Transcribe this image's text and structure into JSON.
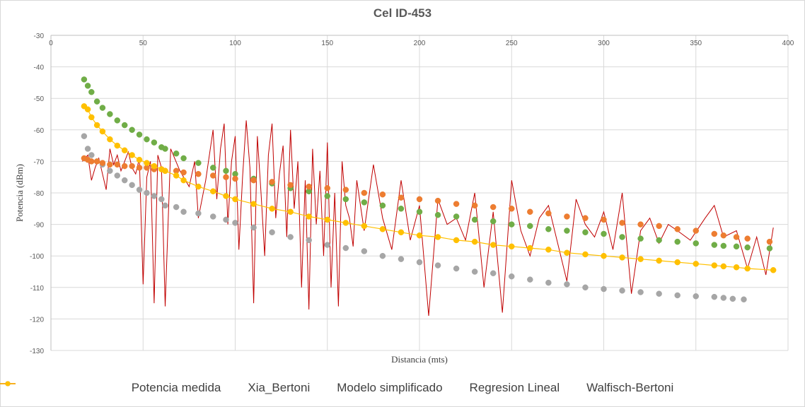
{
  "chart_data": {
    "type": "scatter",
    "title": "Cel ID-453",
    "xlabel": "Distancia (mts)",
    "ylabel": "Potencia (dBm)",
    "xlim": [
      0,
      400
    ],
    "ylim": [
      -130,
      -30
    ],
    "x_ticks": [
      0,
      50,
      100,
      150,
      200,
      250,
      300,
      350,
      400
    ],
    "y_ticks": [
      -30,
      -40,
      -50,
      -60,
      -70,
      -80,
      -90,
      -100,
      -110,
      -120,
      -130
    ],
    "x_axis_position": "top",
    "grid": true,
    "legend_position": "bottom",
    "series": [
      {
        "name": "Potencia medida",
        "style": "line",
        "color": "#c00000",
        "x": [
          17,
          20,
          22,
          24,
          26,
          28,
          30,
          32,
          34,
          36,
          38,
          40,
          42,
          44,
          46,
          48,
          50,
          52,
          54,
          56,
          58,
          60,
          62,
          65,
          70,
          75,
          78,
          80,
          84,
          88,
          90,
          92,
          94,
          96,
          98,
          100,
          102,
          104,
          106,
          108,
          110,
          112,
          114,
          116,
          118,
          120,
          122,
          124,
          126,
          128,
          130,
          132,
          134,
          136,
          138,
          140,
          142,
          144,
          146,
          148,
          150,
          152,
          154,
          156,
          158,
          160,
          162,
          164,
          166,
          170,
          175,
          180,
          185,
          190,
          195,
          200,
          205,
          210,
          215,
          220,
          225,
          230,
          235,
          240,
          245,
          250,
          255,
          260,
          265,
          270,
          275,
          280,
          285,
          290,
          295,
          300,
          305,
          310,
          315,
          320,
          325,
          330,
          335,
          340,
          347,
          355,
          360,
          365,
          372,
          378,
          383,
          388,
          392
        ],
        "y": [
          -70,
          -68,
          -76,
          -72,
          -69,
          -74,
          -79,
          -66,
          -71,
          -68,
          -73,
          -70,
          -67,
          -72,
          -74,
          -69,
          -109,
          -75,
          -70,
          -115,
          -68,
          -72,
          -116,
          -66,
          -73,
          -78,
          -70,
          -88,
          -76,
          -60,
          -82,
          -66,
          -58,
          -90,
          -70,
          -62,
          -98,
          -75,
          -57,
          -72,
          -115,
          -62,
          -80,
          -100,
          -68,
          -58,
          -88,
          -74,
          -65,
          -94,
          -60,
          -85,
          -70,
          -110,
          -76,
          -117,
          -66,
          -90,
          -73,
          -100,
          -64,
          -110,
          -80,
          -116,
          -70,
          -84,
          -88,
          -97,
          -76,
          -92,
          -71,
          -88,
          -98,
          -76,
          -95,
          -84,
          -119,
          -82,
          -90,
          -88,
          -95,
          -80,
          -110,
          -86,
          -118,
          -76,
          -92,
          -100,
          -88,
          -84,
          -96,
          -108,
          -82,
          -90,
          -94,
          -86,
          -98,
          -80,
          -112,
          -92,
          -88,
          -96,
          -90,
          -92,
          -95,
          -88,
          -84,
          -94,
          -92,
          -104,
          -94,
          -106,
          -91
        ],
        "raw_note": ""
      },
      {
        "name": "Xia_Bertoni",
        "style": "markers",
        "color": "#a6a6a6",
        "x": [
          18,
          20,
          22,
          25,
          28,
          32,
          36,
          40,
          44,
          48,
          52,
          56,
          60,
          62,
          68,
          72,
          80,
          88,
          95,
          100,
          110,
          120,
          130,
          140,
          150,
          160,
          170,
          180,
          190,
          200,
          210,
          220,
          230,
          240,
          250,
          260,
          270,
          280,
          290,
          300,
          310,
          320,
          330,
          340,
          350,
          360,
          365,
          370,
          376
        ],
        "y": [
          -62,
          -66,
          -68,
          -70,
          -71,
          -73,
          -74.5,
          -76,
          -77.5,
          -79,
          -80,
          -81,
          -82,
          -84,
          -84.5,
          -86,
          -86.5,
          -87.5,
          -88.5,
          -89.5,
          -91,
          -92.5,
          -94,
          -95,
          -96.5,
          -97.5,
          -98.5,
          -100,
          -101,
          -102,
          -103,
          -104,
          -105,
          -105.5,
          -106.5,
          -107.5,
          -108.5,
          -109,
          -110,
          -110.5,
          -111,
          -111.5,
          -112,
          -112.5,
          -112.8,
          -113,
          -113.3,
          -113.6,
          -113.8
        ]
      },
      {
        "name": "Modelo simplificado",
        "style": "markers",
        "color": "#70ad47",
        "x": [
          18,
          20,
          22,
          25,
          28,
          32,
          36,
          40,
          44,
          48,
          52,
          56,
          60,
          62,
          68,
          72,
          80,
          88,
          95,
          100,
          110,
          120,
          130,
          140,
          150,
          160,
          170,
          180,
          190,
          200,
          210,
          220,
          230,
          240,
          250,
          260,
          270,
          280,
          290,
          300,
          310,
          320,
          330,
          340,
          350,
          360,
          365,
          372,
          378,
          390
        ],
        "y": [
          -44,
          -46,
          -48,
          -51,
          -53,
          -55,
          -57,
          -58.5,
          -60,
          -61.5,
          -63,
          -64,
          -65.5,
          -66,
          -67.5,
          -69,
          -70.5,
          -72,
          -73,
          -74,
          -75.5,
          -77,
          -78.5,
          -79.5,
          -81,
          -82,
          -83,
          -84,
          -85,
          -86,
          -87,
          -87.5,
          -88.5,
          -89,
          -90,
          -90.5,
          -91.5,
          -92,
          -92.5,
          -93,
          -94,
          -94.5,
          -95,
          -95.5,
          -96,
          -96.5,
          -96.8,
          -97,
          -97.3,
          -97.6
        ]
      },
      {
        "name": "Regresion Lineal",
        "style": "markers",
        "color": "#ed7d31",
        "x": [
          18,
          20,
          22,
          25,
          28,
          32,
          36,
          40,
          44,
          48,
          52,
          56,
          60,
          62,
          68,
          72,
          80,
          88,
          95,
          100,
          110,
          120,
          130,
          140,
          150,
          160,
          170,
          180,
          190,
          200,
          210,
          220,
          230,
          240,
          250,
          260,
          270,
          280,
          290,
          300,
          310,
          320,
          330,
          340,
          350,
          360,
          365,
          372,
          378,
          390
        ],
        "y": [
          -69,
          -69.5,
          -70,
          -70,
          -70.5,
          -71,
          -71,
          -71.5,
          -71.5,
          -72,
          -72,
          -72.5,
          -72.5,
          -73,
          -73,
          -73.5,
          -74,
          -74.5,
          -75,
          -75.5,
          -76,
          -76.5,
          -77.5,
          -78,
          -78.5,
          -79,
          -80,
          -80.5,
          -81.5,
          -82,
          -82.5,
          -83.5,
          -84,
          -84.5,
          -85,
          -86,
          -86.5,
          -87.5,
          -88,
          -88.5,
          -89.5,
          -90,
          -90.5,
          -91.5,
          -92,
          -93,
          -93.5,
          -94,
          -94.5,
          -95.5
        ]
      },
      {
        "name": "Walfisch-Bertoni",
        "style": "line-markers",
        "color": "#ffc000",
        "x": [
          18,
          20,
          22,
          25,
          28,
          32,
          36,
          40,
          44,
          48,
          52,
          56,
          60,
          62,
          68,
          72,
          80,
          88,
          95,
          100,
          110,
          120,
          130,
          140,
          150,
          160,
          170,
          180,
          190,
          200,
          210,
          220,
          230,
          240,
          250,
          260,
          270,
          280,
          290,
          300,
          310,
          320,
          330,
          340,
          350,
          360,
          365,
          372,
          378,
          392
        ],
        "y": [
          -52.5,
          -53.5,
          -56,
          -58.5,
          -60.5,
          -63,
          -65,
          -66.5,
          -68,
          -69.5,
          -70.5,
          -71.5,
          -72.5,
          -73,
          -74.5,
          -76,
          -78,
          -79.5,
          -81,
          -82,
          -83.5,
          -85,
          -86,
          -87.5,
          -88.5,
          -89.5,
          -90.5,
          -91.5,
          -92.5,
          -93.5,
          -94,
          -95,
          -95.5,
          -96.5,
          -97,
          -97.5,
          -98,
          -99,
          -99.5,
          -100,
          -100.5,
          -101,
          -101.5,
          -102,
          -102.5,
          -103,
          -103.3,
          -103.6,
          -104,
          -104.5
        ]
      }
    ]
  }
}
